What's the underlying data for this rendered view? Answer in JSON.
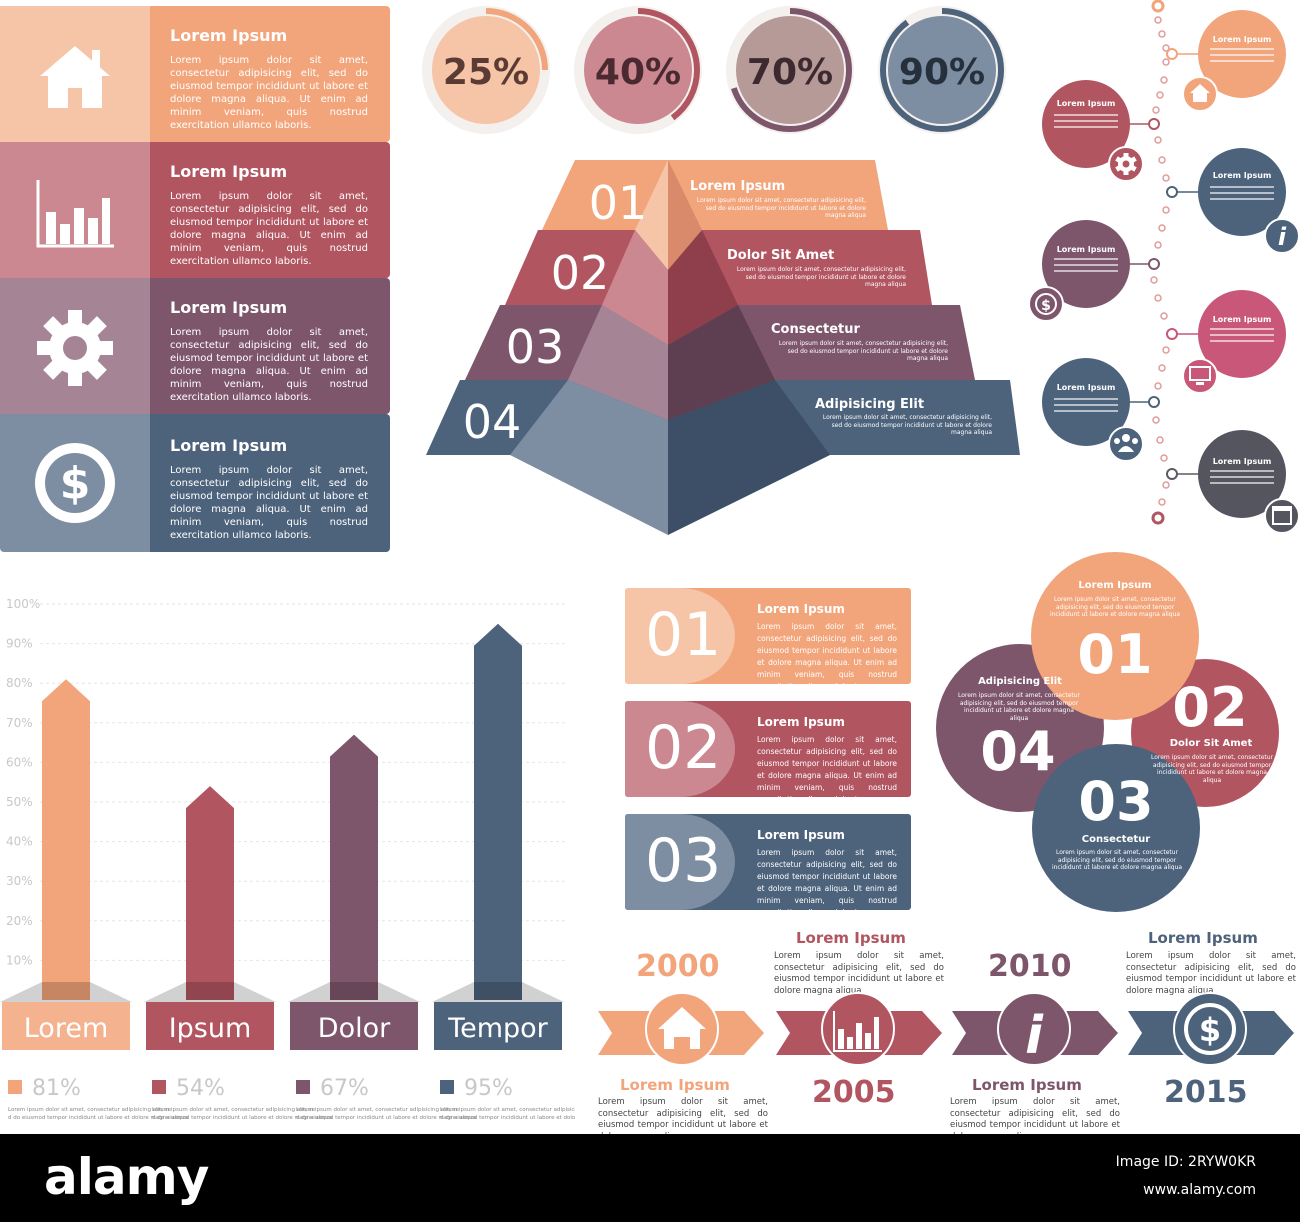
{
  "colors": {
    "peach": "#f2a47b",
    "rose": "#b15561",
    "plum": "#7e566c",
    "slate": "#4d627b",
    "peach_light": "#f6c4a6",
    "rose_light": "#cc8890",
    "plum_light": "#a58595",
    "slate_light": "#7d8ea2",
    "footer": "#000000"
  },
  "lorem_short": "Lorem ipsum dolor sit amet, consectetur adipisicing elit, sed do eiusmod tempor incididunt ut labore et dolore magna aliqua. Ut enim ad minim veniam, quis nostrud exercitation ullamco laboris.",
  "lorem_tiny": "Lorem ipsum dolor sit amet, consectetur adipisicing elit, sed do eiusmod tempor incididunt ut labore et dolore magna aliqua",
  "banners": [
    {
      "title": "Lorem Ipsum",
      "icon": "house-icon"
    },
    {
      "title": "Lorem Ipsum",
      "icon": "bar-chart-icon"
    },
    {
      "title": "Lorem Ipsum",
      "icon": "gear-icon"
    },
    {
      "title": "Lorem Ipsum",
      "icon": "dollar-icon"
    }
  ],
  "percent_circles": [
    {
      "label": "25%",
      "value": 25
    },
    {
      "label": "40%",
      "value": 40
    },
    {
      "label": "70%",
      "value": 70
    },
    {
      "label": "90%",
      "value": 90
    }
  ],
  "pyramid": [
    {
      "num": "01",
      "title": "Lorem Ipsum"
    },
    {
      "num": "02",
      "title": "Dolor Sit Amet"
    },
    {
      "num": "03",
      "title": "Consectetur"
    },
    {
      "num": "04",
      "title": "Adipisicing Elit"
    }
  ],
  "timeline_circles": {
    "title": "Lorem Ipsum",
    "items": [
      "house-icon",
      "gear-icon",
      "info-icon",
      "dollar-icon",
      "monitor-icon",
      "people-icon",
      "calendar-icon"
    ]
  },
  "chart_data": {
    "type": "bar",
    "categories": [
      "Lorem",
      "Ipsum",
      "Dolor",
      "Tempor"
    ],
    "values": [
      81,
      54,
      67,
      95
    ],
    "value_labels": [
      "81%",
      "54%",
      "67%",
      "95%"
    ],
    "ylim": [
      0,
      100
    ],
    "yticks": [
      "10%",
      "20%",
      "30%",
      "40%",
      "50%",
      "60%",
      "70%",
      "80%",
      "90%",
      "100%"
    ],
    "grid": true
  },
  "numbered_boxes": [
    {
      "num": "01",
      "title": "Lorem Ipsum"
    },
    {
      "num": "02",
      "title": "Lorem Ipsum"
    },
    {
      "num": "03",
      "title": "Lorem Ipsum"
    }
  ],
  "venn": [
    {
      "num": "01",
      "title": "Lorem Ipsum"
    },
    {
      "num": "02",
      "title": "Dolor Sit Amet"
    },
    {
      "num": "03",
      "title": "Consectetur"
    },
    {
      "num": "04",
      "title": "Adipisicing Elit"
    }
  ],
  "years": [
    {
      "year": "2000",
      "title": "Lorem Ipsum",
      "icon": "house-icon"
    },
    {
      "year": "2005",
      "title": "Lorem Ipsum",
      "icon": "bar-chart-icon"
    },
    {
      "year": "2010",
      "title": "Lorem Ipsum",
      "icon": "info-icon"
    },
    {
      "year": "2015",
      "title": "Lorem Ipsum",
      "icon": "dollar-icon"
    }
  ],
  "watermark": {
    "brand": "alamy",
    "image_id": "Image ID: 2RYW0KR",
    "site": "www.alamy.com"
  }
}
